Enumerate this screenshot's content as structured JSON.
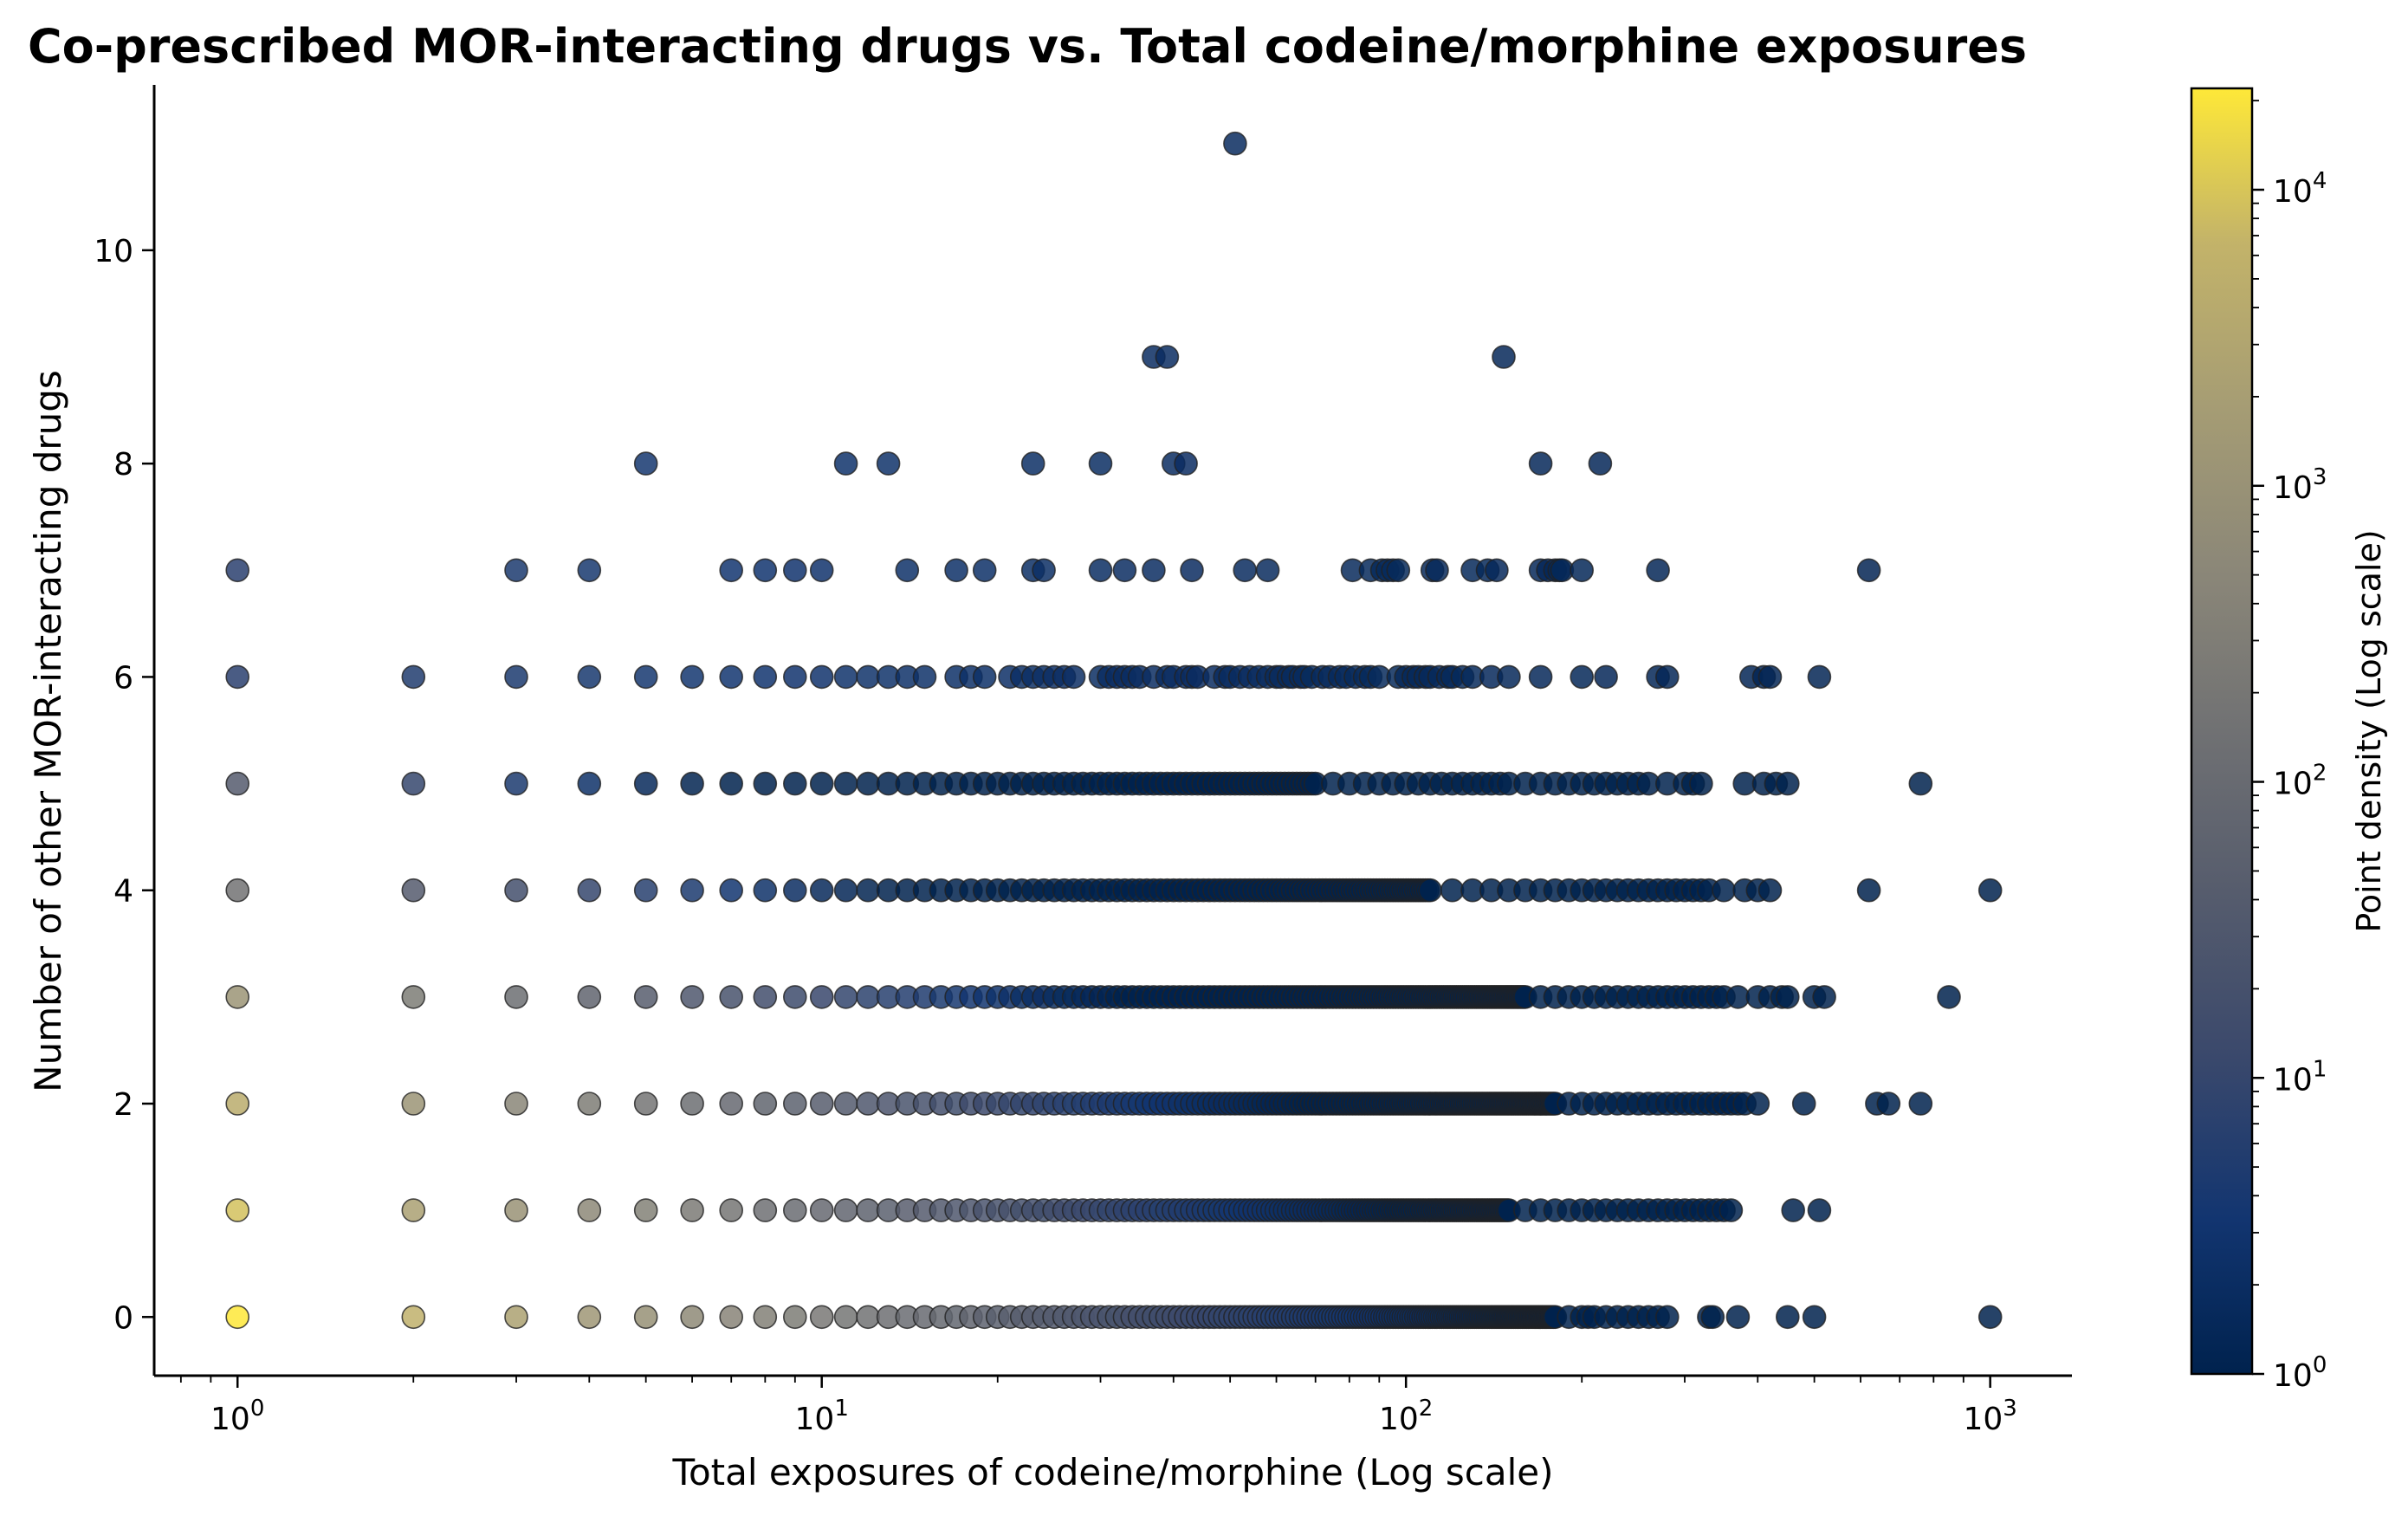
{
  "chart_data": {
    "type": "scatter",
    "title": "Co-prescribed MOR-interacting drugs vs. Total codeine/morphine exposures",
    "xlabel": "Total exposures of codeine/morphine (Log scale)",
    "ylabel": "Number of other MOR-interacting drugs",
    "xscale": "log",
    "xlim": [
      0.72,
      1380
    ],
    "ylim": [
      -0.55,
      11.55
    ],
    "x_ticks": [
      {
        "value": 1,
        "base": "10",
        "exp": "0"
      },
      {
        "value": 10,
        "base": "10",
        "exp": "1"
      },
      {
        "value": 100,
        "base": "10",
        "exp": "2"
      },
      {
        "value": 1000,
        "base": "10",
        "exp": "3"
      }
    ],
    "y_ticks": [
      0,
      2,
      4,
      6,
      8,
      10
    ],
    "grid": false,
    "legend": "none",
    "colorbar": {
      "label": "Point density (Log scale)",
      "scale": "log",
      "range": [
        1,
        22000
      ],
      "colormap": "cividis",
      "ticks": [
        {
          "value": 1,
          "base": "10",
          "exp": "0"
        },
        {
          "value": 10,
          "base": "10",
          "exp": "1"
        },
        {
          "value": 100,
          "base": "10",
          "exp": "2"
        },
        {
          "value": 1000,
          "base": "10",
          "exp": "3"
        },
        {
          "value": 10000,
          "base": "10",
          "exp": "4"
        }
      ]
    },
    "rows": [
      {
        "y": 0,
        "x_dense_max": 180,
        "density_at_1": 22000,
        "extra_x": [
          190,
          200,
          205,
          210,
          220,
          230,
          240,
          250,
          260,
          270,
          280,
          330,
          335,
          370,
          450,
          500,
          1000
        ]
      },
      {
        "y": 1,
        "x_dense_max": 150,
        "density_at_1": 9000,
        "extra_x": [
          160,
          170,
          180,
          190,
          200,
          210,
          220,
          230,
          240,
          250,
          260,
          270,
          280,
          290,
          300,
          310,
          320,
          330,
          340,
          350,
          360,
          460,
          510
        ]
      },
      {
        "y": 2,
        "x_dense_max": 180,
        "density_at_1": 4500,
        "extra_x": [
          190,
          200,
          210,
          220,
          230,
          240,
          250,
          260,
          270,
          280,
          290,
          300,
          310,
          320,
          330,
          340,
          350,
          360,
          370,
          380,
          400,
          480,
          640,
          670,
          760
        ]
      },
      {
        "y": 3,
        "x_dense_max": 160,
        "density_at_1": 1100,
        "extra_x": [
          170,
          180,
          190,
          200,
          210,
          220,
          230,
          240,
          250,
          260,
          270,
          280,
          290,
          300,
          310,
          320,
          330,
          340,
          350,
          370,
          400,
          420,
          440,
          450,
          500,
          520,
          850
        ]
      },
      {
        "y": 4,
        "x_dense_max": 110,
        "density_at_1": 160,
        "extra_x": [
          120,
          130,
          140,
          150,
          160,
          170,
          180,
          190,
          200,
          210,
          220,
          230,
          240,
          250,
          260,
          270,
          280,
          290,
          300,
          310,
          320,
          330,
          350,
          380,
          400,
          420,
          620,
          1000
        ]
      },
      {
        "y": 5,
        "x_dense_max": 70,
        "density_at_1": 40,
        "extra_x": [
          75,
          80,
          85,
          90,
          95,
          100,
          105,
          110,
          115,
          120,
          125,
          130,
          135,
          140,
          145,
          150,
          160,
          170,
          180,
          190,
          200,
          210,
          220,
          230,
          240,
          250,
          260,
          280,
          300,
          310,
          320,
          380,
          410,
          430,
          450,
          760
        ]
      },
      {
        "y": 6,
        "x": [
          1,
          2,
          3,
          4,
          5,
          6,
          7,
          8,
          9,
          10,
          11,
          12,
          13,
          14,
          15,
          17,
          18,
          19,
          21,
          22,
          23,
          24,
          25,
          26,
          27,
          30,
          31,
          32,
          33,
          34,
          35,
          37,
          39,
          40,
          42,
          43,
          44,
          47,
          49,
          50,
          52,
          54,
          56,
          58,
          60,
          61,
          63,
          64,
          66,
          67,
          69,
          72,
          74,
          77,
          79,
          82,
          85,
          87,
          90,
          97,
          100,
          103,
          105,
          108,
          110,
          114,
          118,
          120,
          125,
          130,
          140,
          150,
          170,
          200,
          220,
          270,
          280,
          390,
          410,
          420,
          510
        ]
      },
      {
        "y": 7,
        "x": [
          1,
          3,
          4,
          7,
          8,
          9,
          10,
          14,
          17,
          19,
          23,
          24,
          30,
          33,
          37,
          43,
          53,
          58,
          81,
          87,
          91,
          93,
          95,
          97,
          111,
          113,
          130,
          138,
          143,
          170,
          175,
          180,
          183,
          185,
          200,
          270,
          620
        ]
      },
      {
        "y": 8,
        "x": [
          5,
          11,
          13,
          23,
          30,
          40,
          42,
          170,
          215
        ]
      },
      {
        "y": 9,
        "x": [
          37,
          39,
          147
        ]
      },
      {
        "y": 11,
        "x": [
          51
        ]
      }
    ]
  }
}
